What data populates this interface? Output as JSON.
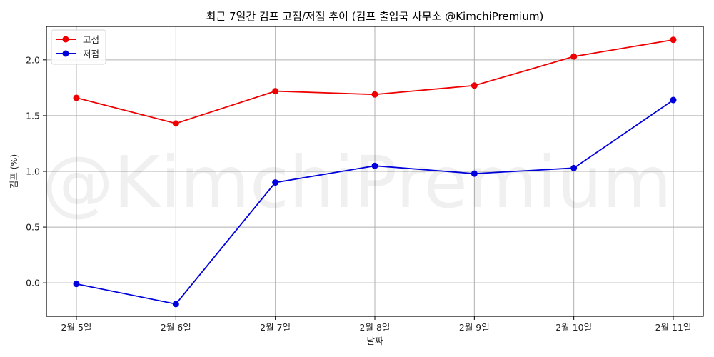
{
  "chart_data": {
    "type": "line",
    "title": "최근 7일간 김프 고점/저점 추이 (김프 출입국 사무소 @KimchiPremium)",
    "xlabel": "날짜",
    "ylabel": "김프 (%)",
    "categories": [
      "2월 5일",
      "2월 6일",
      "2월 7일",
      "2월 8일",
      "2월 9일",
      "2월 10일",
      "2월 11일"
    ],
    "series": [
      {
        "name": "고점",
        "color": "#ee0000",
        "marker": "circle",
        "values": [
          1.66,
          1.43,
          1.72,
          1.69,
          1.77,
          2.03,
          2.18
        ]
      },
      {
        "name": "저점",
        "color": "#0000dd",
        "marker": "circle",
        "values": [
          -0.01,
          -0.19,
          0.9,
          1.05,
          0.98,
          1.03,
          1.64
        ]
      }
    ],
    "ylim": [
      -0.3,
      2.3
    ],
    "yticks": [
      0.0,
      0.5,
      1.0,
      1.5,
      2.0
    ],
    "ytick_labels": [
      "0.0",
      "0.5",
      "1.0",
      "1.5",
      "2.0"
    ],
    "grid": true,
    "legend_position": "upper left",
    "watermark": "@KimchiPremium"
  }
}
